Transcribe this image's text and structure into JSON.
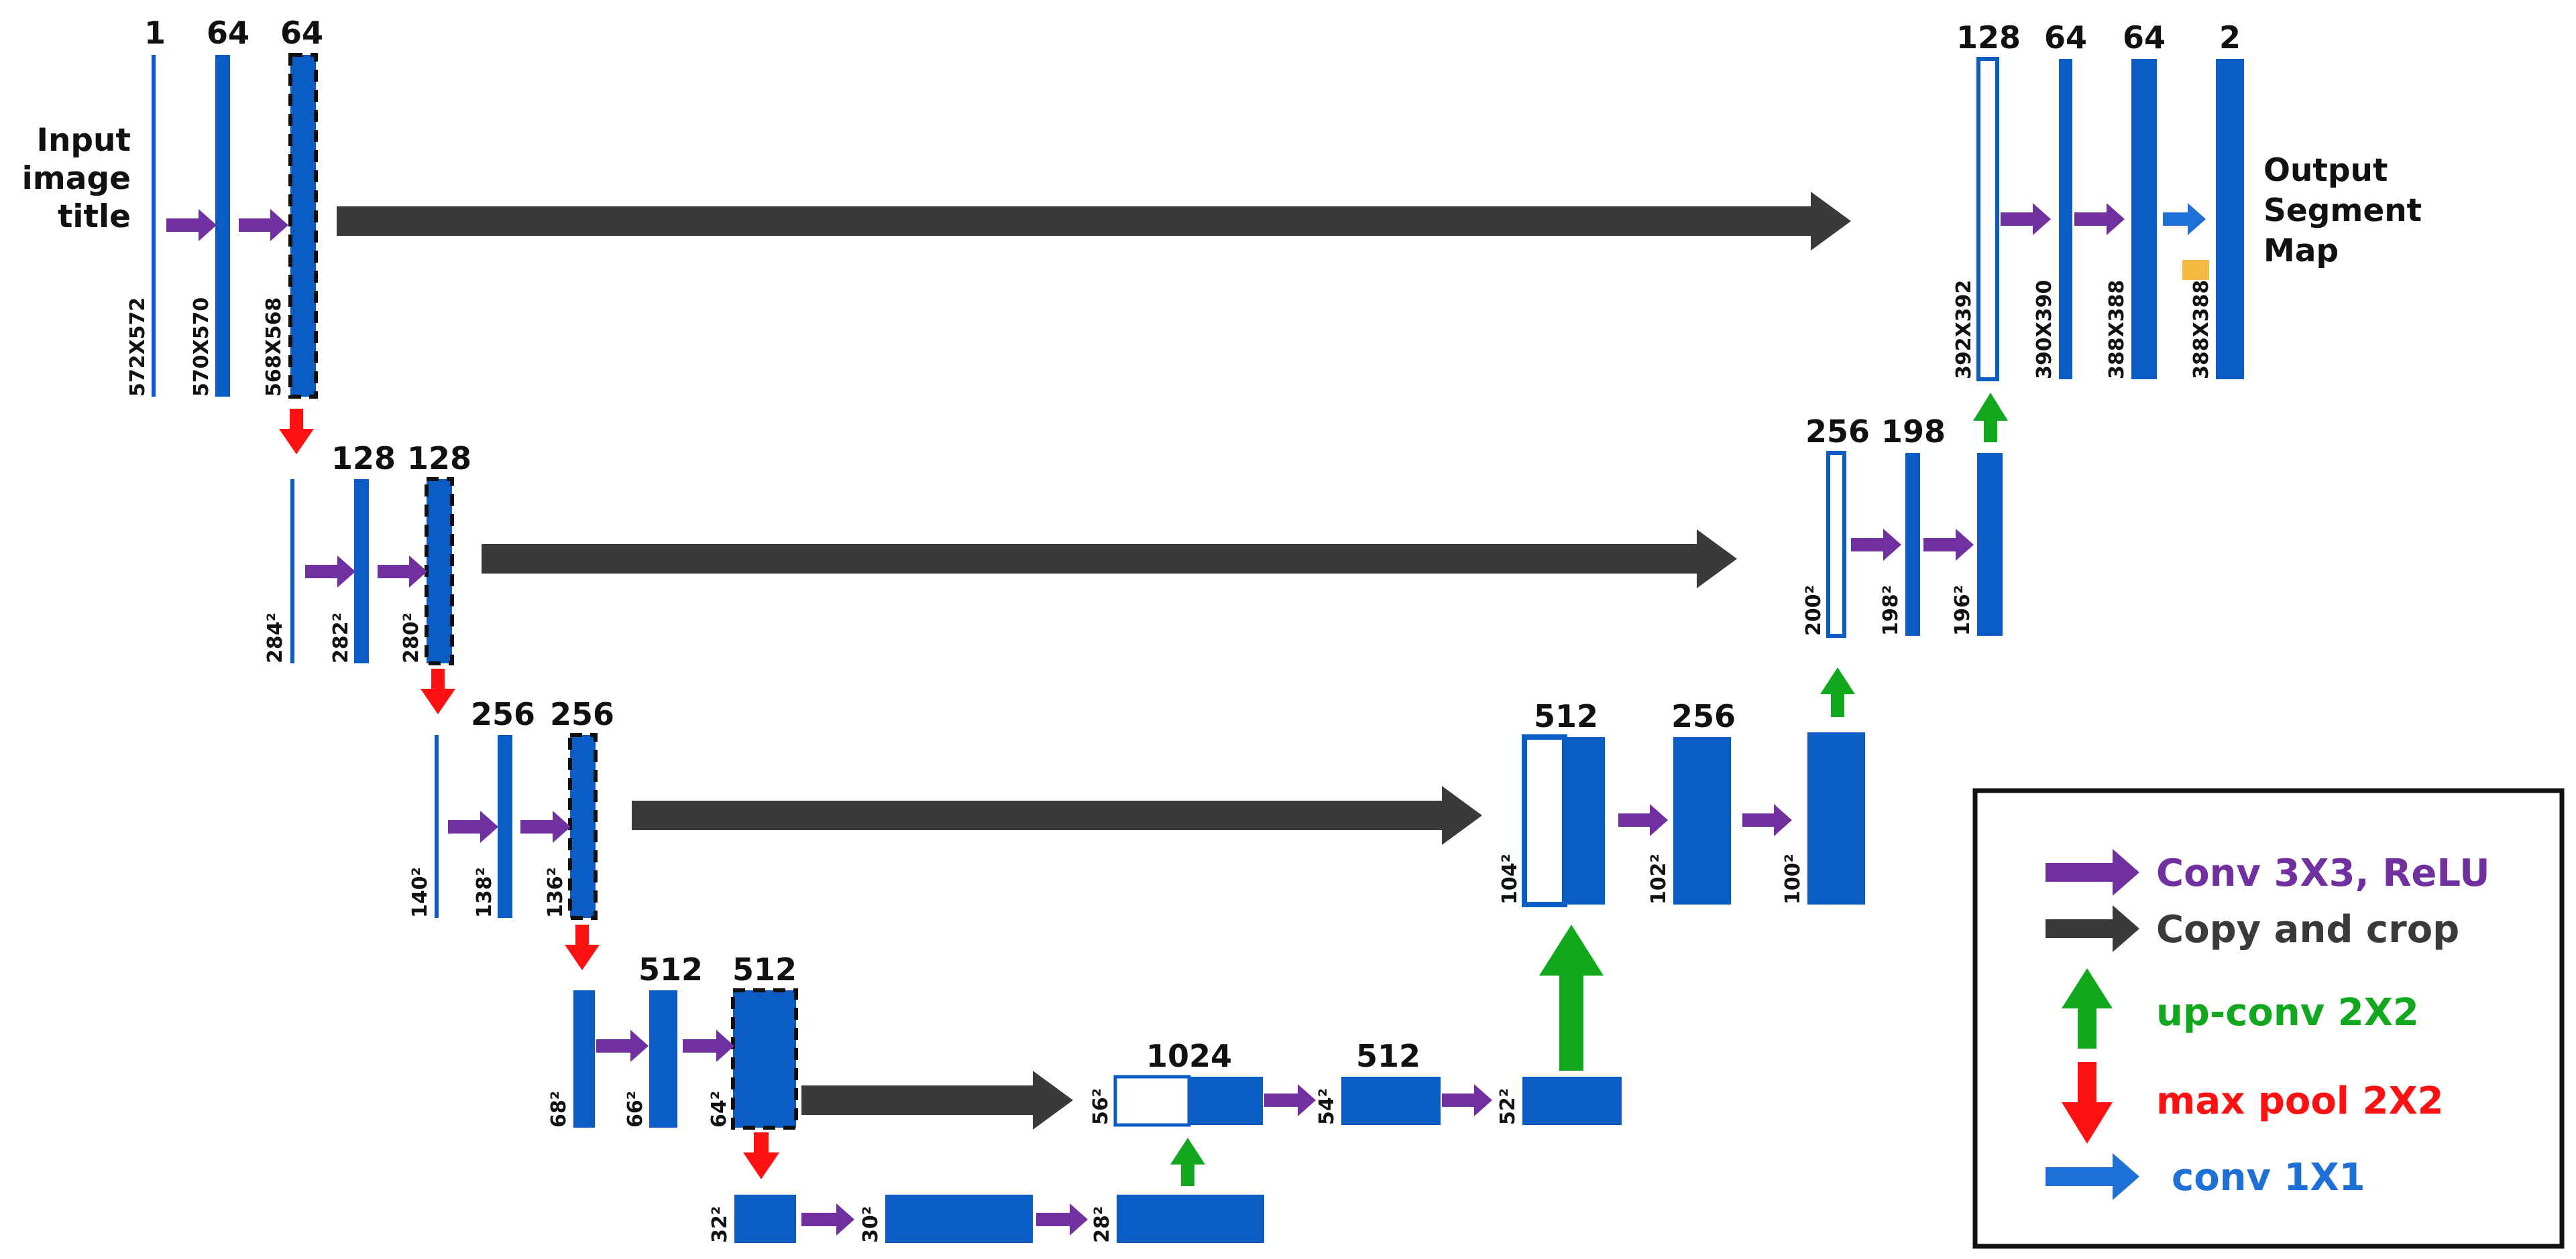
{
  "colors": {
    "feature_map": "#0b5cc4",
    "conv_arrow": "#7030a0",
    "copy_arrow": "#3a3a3a",
    "up_arrow": "#12a81e",
    "pool_arrow": "#ff1111",
    "conv1x1_arrow": "#1e6fd6",
    "crop_highlight": "#f5b942"
  },
  "input_label": [
    "Input",
    "image",
    "title"
  ],
  "output_label": [
    "Output",
    "Segment",
    "Map"
  ],
  "maps": [
    {
      "channels": "1",
      "dim": "572X572"
    },
    {
      "channels": "64",
      "dim": "570X570"
    },
    {
      "channels": "64",
      "dim": "568X568"
    },
    {
      "channels": "",
      "dim": "284²"
    },
    {
      "channels": "128",
      "dim": "282²"
    },
    {
      "channels": "128",
      "dim": "280²"
    },
    {
      "channels": "",
      "dim": "140²"
    },
    {
      "channels": "256",
      "dim": "138²"
    },
    {
      "channels": "256",
      "dim": "136²"
    },
    {
      "channels": "",
      "dim": "68²"
    },
    {
      "channels": "512",
      "dim": "66²"
    },
    {
      "channels": "512",
      "dim": "64²"
    },
    {
      "channels": "",
      "dim": "32²"
    },
    {
      "channels": "",
      "dim": "30²"
    },
    {
      "channels": "",
      "dim": "28²"
    },
    {
      "channels": "1024",
      "dim": "56²"
    },
    {
      "channels": "512",
      "dim": "54²"
    },
    {
      "channels": "",
      "dim": "52²"
    },
    {
      "channels": "512",
      "dim": "104²"
    },
    {
      "channels": "256",
      "dim": "102²"
    },
    {
      "channels": "",
      "dim": "100²"
    },
    {
      "channels": "256",
      "dim": "200²"
    },
    {
      "channels": "198",
      "dim": "198²"
    },
    {
      "channels": "",
      "dim": "196²"
    },
    {
      "channels": "128",
      "dim": "392X392"
    },
    {
      "channels": "64",
      "dim": "390X390"
    },
    {
      "channels": "64",
      "dim": "388X388"
    },
    {
      "channels": "2",
      "dim": "388X388"
    }
  ],
  "legend": [
    {
      "icon": "purple-arrow",
      "label": "Conv 3X3, ReLU",
      "color": "#7030a0"
    },
    {
      "icon": "gray-arrow",
      "label": "Copy and crop",
      "color": "#3a3a3a"
    },
    {
      "icon": "green-up-arrow",
      "label": "up-conv 2X2",
      "color": "#12a81e"
    },
    {
      "icon": "red-down-arrow",
      "label": "max pool 2X2",
      "color": "#ff1111"
    },
    {
      "icon": "blue-arrow",
      "label": "conv 1X1",
      "color": "#1e6fd6"
    }
  ]
}
